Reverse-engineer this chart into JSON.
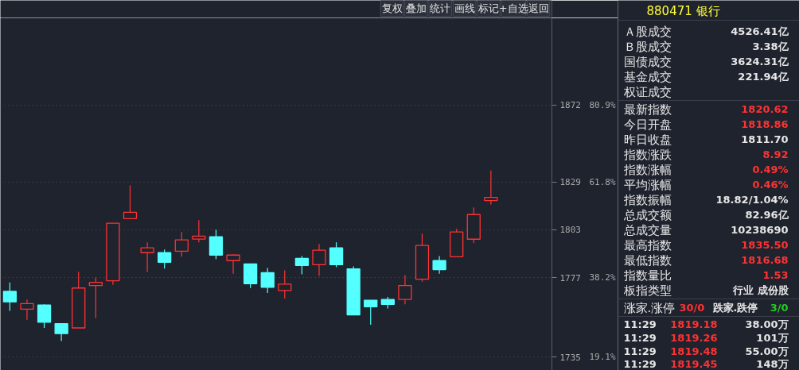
{
  "chart_data": [
    {
      "type": "other",
      "cell_labels": [
        [
          "复权",
          "叠加",
          "统计",
          "画线",
          "标记",
          "+自选",
          "返回"
        ]
      ]
    },
    {
      "type": "candlestick",
      "categories": [
        null,
        null,
        null,
        null,
        null,
        null,
        null,
        null,
        null,
        null,
        null,
        null,
        null,
        null,
        null,
        null,
        null,
        null,
        null,
        null,
        null,
        null,
        null,
        null,
        null,
        null,
        null,
        null,
        null,
        null,
        null,
        null
      ],
      "ohlc": [
        [
          1769.7,
          1774.5,
          1759.3,
          1764.1
        ],
        [
          1760.2,
          1765.4,
          1754.6,
          1763.2
        ],
        [
          1762.4,
          1762.8,
          1750.3,
          1753.3
        ],
        [
          1752.5,
          1752.5,
          1743.4,
          1747.3
        ],
        [
          1750.3,
          1780.1,
          1750.3,
          1771.5
        ],
        [
          1772.8,
          1777.1,
          1755.5,
          1774.5
        ],
        [
          1775.4,
          1806.5,
          1773.2,
          1806.5
        ],
        [
          1809.0,
          1827.2,
          1809.0,
          1812.5
        ],
        [
          1790.5,
          1796.1,
          1780.1,
          1793.1
        ],
        [
          1790.5,
          1792.2,
          1781.9,
          1785.3
        ],
        [
          1791.3,
          1801.7,
          1788.3,
          1797.4
        ],
        [
          1797.9,
          1808.2,
          1796.1,
          1799.5
        ],
        [
          1799.1,
          1803.0,
          1787.0,
          1789.2
        ],
        [
          1786.2,
          1789.6,
          1779.2,
          1789.2
        ],
        [
          1784.4,
          1784.4,
          1771.5,
          1773.8
        ],
        [
          1779.7,
          1782.3,
          1768.9,
          1771.9
        ],
        [
          1770.2,
          1781.0,
          1765.9,
          1773.6
        ],
        [
          1787.4,
          1788.7,
          1778.8,
          1783.6
        ],
        [
          1784.0,
          1795.2,
          1778.0,
          1791.8
        ],
        [
          1793.1,
          1796.1,
          1782.7,
          1784.0
        ],
        [
          1781.8,
          1783.1,
          1757.2,
          1757.2
        ],
        [
          1765.0,
          1765.0,
          1752.0,
          1761.5
        ],
        [
          1765.4,
          1766.7,
          1760.6,
          1762.8
        ],
        [
          1765.4,
          1778.4,
          1762.8,
          1772.8
        ],
        [
          1776.2,
          1800.8,
          1774.9,
          1794.4
        ],
        [
          1786.2,
          1788.7,
          1779.2,
          1781.4
        ],
        [
          1788.3,
          1803.4,
          1788.3,
          1801.7
        ],
        [
          1797.8,
          1815.1,
          1795.7,
          1811.2
        ],
        [
          1818.86,
          1835.5,
          1816.68,
          1820.62
        ],
        null,
        null,
        null
      ],
      "colors": [
        "#54ffff",
        "#ff3232",
        "#54ffff",
        "#54ffff",
        "#ff3232",
        "#ff3232",
        "#ff3232",
        "#ff3232",
        "#ff3232",
        "#54ffff",
        "#ff3232",
        "#ff3232",
        "#54ffff",
        "#ff3232",
        "#54ffff",
        "#54ffff",
        "#ff3232",
        "#54ffff",
        "#ff3232",
        "#54ffff",
        "#54ffff",
        "#54ffff",
        "#54ffff",
        "#ff3232",
        "#ff3232",
        "#54ffff",
        "#ff3232",
        "#ff3232",
        "#ff3232",
        null,
        null,
        null
      ],
      "log": "y",
      "ylim": [
        1728,
        1922
      ],
      "yticks": [
        1872,
        1829,
        1803,
        1777,
        1735
      ],
      "annotations": [
        "80.9%",
        "61.8%",
        null,
        "38.2%",
        "19.1%"
      ],
      "grid": "y"
    },
    {
      "type": "other",
      "title": "880471 银行",
      "cell_labels": [
        [
          "Ａ股成交",
          "4526.41亿"
        ],
        [
          "Ｂ股成交",
          "3.38亿"
        ],
        [
          "国债成交",
          "3624.31亿"
        ],
        [
          "基金成交",
          "221.94亿"
        ],
        [
          "权证成交",
          null
        ]
      ],
      "colors": [
        [
          "#e6e6e6",
          "#e6e6e6"
        ],
        [
          "#e6e6e6",
          "#e6e6e6"
        ],
        [
          "#e6e6e6",
          "#e6e6e6"
        ],
        [
          "#e6e6e6",
          "#e6e6e6"
        ],
        [
          "#e6e6e6",
          null
        ]
      ]
    },
    {
      "type": "other",
      "cell_labels": [
        [
          "最新指数",
          "1820.62"
        ],
        [
          "今日开盘",
          "1818.86"
        ],
        [
          "昨日收盘",
          "1811.70"
        ],
        [
          "指数涨跌",
          "8.92"
        ],
        [
          "指数涨幅",
          "0.49%"
        ],
        [
          "平均涨幅",
          "0.46%"
        ],
        [
          "指数振幅",
          "18.82/1.04%"
        ],
        [
          "总成交额",
          "82.96亿"
        ],
        [
          "总成交量",
          "10238690"
        ],
        [
          "最高指数",
          "1835.50"
        ],
        [
          "最低指数",
          "1816.68"
        ],
        [
          "指数量比",
          "1.53"
        ],
        [
          "板指类型",
          "行业 成份股"
        ]
      ],
      "colors": [
        [
          "#e6e6e6",
          "#ff3232"
        ],
        [
          "#e6e6e6",
          "#ff3232"
        ],
        [
          "#e6e6e6",
          "#e6e6e6"
        ],
        [
          "#e6e6e6",
          "#ff3232"
        ],
        [
          "#e6e6e6",
          "#ff3232"
        ],
        [
          "#e6e6e6",
          "#ff3232"
        ],
        [
          "#e6e6e6",
          "#e6e6e6"
        ],
        [
          "#e6e6e6",
          "#e6e6e6"
        ],
        [
          "#e6e6e6",
          "#e6e6e6"
        ],
        [
          "#e6e6e6",
          "#ff3232"
        ],
        [
          "#e6e6e6",
          "#ff3232"
        ],
        [
          "#e6e6e6",
          "#ff3232"
        ],
        [
          "#e6e6e6",
          "#e6e6e6"
        ]
      ]
    },
    {
      "type": "other",
      "cell_labels": [
        [
          "涨家.涨停",
          "30/0",
          "跌家.跌停",
          "3/0"
        ]
      ],
      "colors": [
        [
          "#e6e6e6",
          "#ff3232",
          "#e6e6e6",
          "#22cc22"
        ]
      ]
    },
    {
      "type": "other",
      "cell_labels": [
        [
          "11:29",
          "1819.18",
          "38.00万"
        ],
        [
          "11:29",
          "1819.26",
          "101万"
        ],
        [
          "11:29",
          "1819.48",
          "55.00万"
        ],
        [
          "11:29",
          "1819.45",
          "148万"
        ]
      ],
      "colors": [
        [
          "#e6e6e6",
          "#ff3232",
          "#e6e6e6"
        ],
        [
          "#e6e6e6",
          "#ff3232",
          "#e6e6e6"
        ],
        [
          "#e6e6e6",
          "#ff3232",
          "#e6e6e6"
        ],
        [
          "#e6e6e6",
          "#ff3232",
          "#e6e6e6"
        ]
      ]
    }
  ]
}
